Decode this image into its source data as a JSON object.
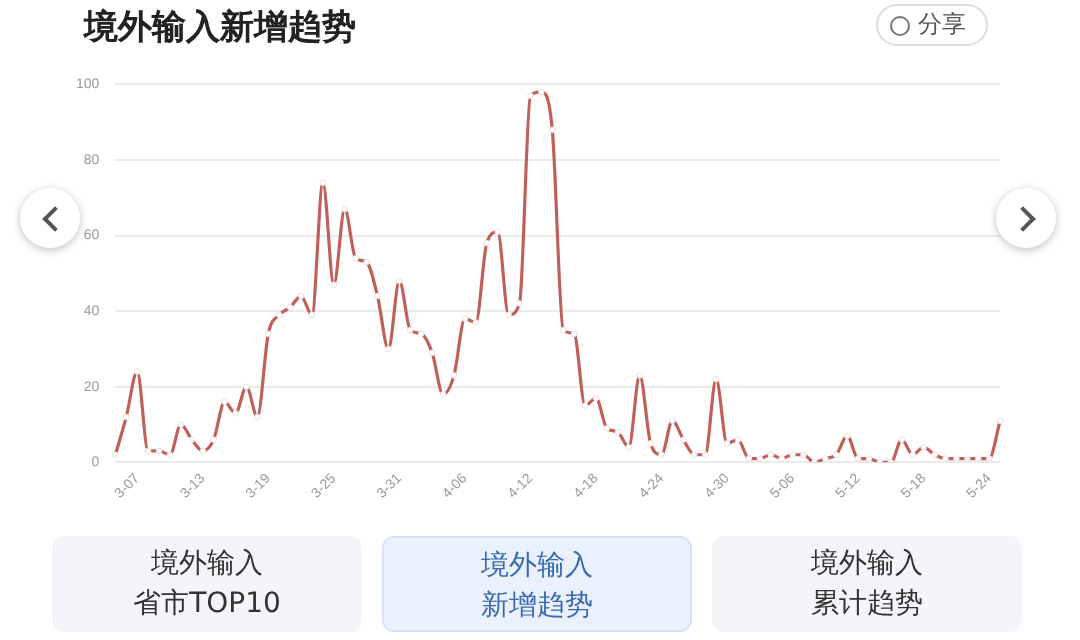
{
  "chart_data": {
    "type": "line",
    "title": "境外输入新增趋势",
    "categories": [
      null,
      null,
      "3-07",
      null,
      null,
      null,
      null,
      null,
      "3-13",
      null,
      null,
      null,
      null,
      null,
      "3-19",
      null,
      null,
      null,
      null,
      null,
      "3-25",
      null,
      null,
      null,
      null,
      null,
      "3-31",
      null,
      null,
      null,
      null,
      null,
      "4-06",
      null,
      null,
      null,
      null,
      null,
      "4-12",
      null,
      null,
      null,
      null,
      null,
      "4-18",
      null,
      null,
      null,
      null,
      null,
      "4-24",
      null,
      null,
      null,
      null,
      null,
      "4-30",
      null,
      null,
      null,
      null,
      null,
      "5-06",
      null,
      null,
      null,
      null,
      null,
      "5-12",
      null,
      null,
      null,
      null,
      null,
      "5-18",
      null,
      null,
      null,
      null,
      null,
      "5-24",
      null
    ],
    "series": [
      {
        "color": "#c0605a",
        "values": [
          2,
          12,
          24,
          3,
          3,
          2,
          10,
          6,
          3,
          6,
          16,
          13,
          20,
          12,
          34,
          39,
          41,
          44,
          39,
          74,
          47,
          67,
          54,
          53,
          44,
          30,
          48,
          35,
          34,
          29,
          18,
          23,
          38,
          37,
          58,
          61,
          39,
          42,
          97,
          98,
          88,
          35,
          34,
          15,
          17,
          9,
          8,
          4,
          23,
          5,
          2,
          11,
          6,
          2,
          2,
          22,
          5,
          6,
          1,
          1,
          2,
          1,
          2,
          2,
          0,
          1,
          2,
          7,
          1,
          1,
          0,
          0,
          6,
          2,
          4,
          2,
          1,
          1,
          1,
          1,
          1,
          11
        ]
      }
    ],
    "ylim": [
      0,
      100
    ],
    "yticks": [
      0,
      20,
      40,
      60,
      80,
      100
    ],
    "grid": "y",
    "legend": false,
    "marker": "circle",
    "line_style": "solid",
    "annotations": [
      "分享",
      "境外输入省市TOP10",
      "境外输入新增趋势",
      "境外输入累计趋势"
    ]
  }
}
